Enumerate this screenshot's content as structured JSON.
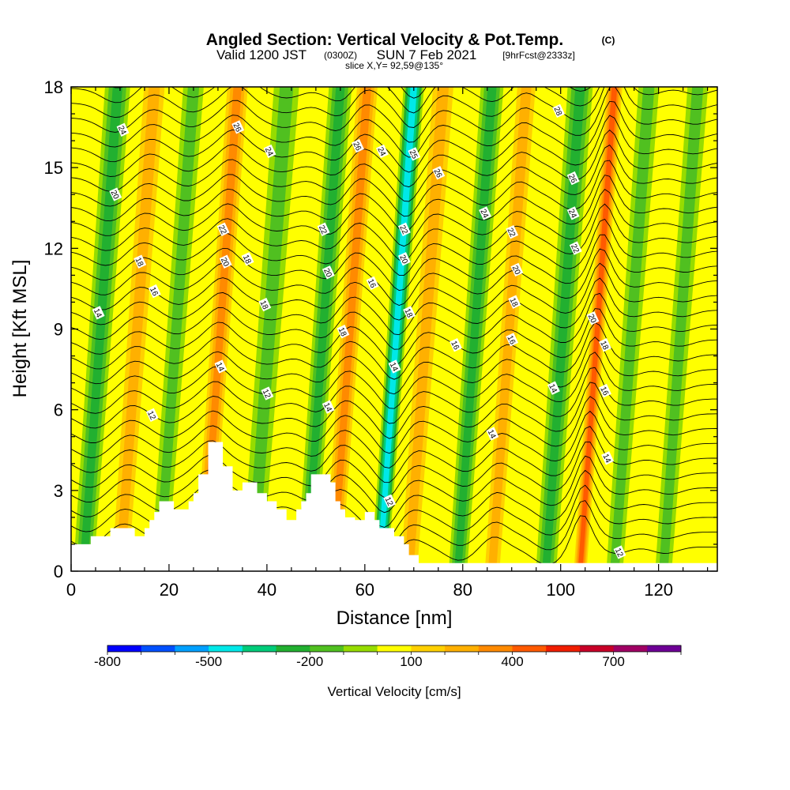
{
  "header": {
    "title": "Angled Section: Vertical Velocity & Pot.Temp.",
    "title_unit": "(C)",
    "valid_prefix": "Valid 1200 JST",
    "valid_utc": "(0300Z)",
    "valid_date": "SUN 7 Feb 2021",
    "forecast": "[9hrFcst@2333z]",
    "slice": "slice X,Y= 92,59@135°"
  },
  "colorbar": {
    "label": "Vertical Velocity [cm/s]",
    "tick_labels": [
      "-800",
      "-500",
      "-200",
      "100",
      "400",
      "700"
    ],
    "colors": [
      "#0000ff",
      "#0050ff",
      "#00a0ff",
      "#00e8e8",
      "#00cc7a",
      "#22b030",
      "#50c020",
      "#96dc00",
      "#ffff00",
      "#ffd000",
      "#ffb000",
      "#ff8a00",
      "#ff5a00",
      "#f01e00",
      "#c80028",
      "#a00064",
      "#6e0096"
    ]
  },
  "chart_data": {
    "type": "heatmap",
    "title": "Angled Section: Vertical Velocity & Pot.Temp.",
    "xlabel": "Distance [nm]",
    "ylabel": "Height [Kft MSL]",
    "xlim": [
      0,
      132
    ],
    "ylim": [
      0,
      18
    ],
    "x_ticks": [
      0,
      20,
      40,
      60,
      80,
      100,
      120
    ],
    "y_ticks": [
      0,
      3,
      6,
      9,
      12,
      15,
      18
    ],
    "colorbar_range": [
      -800,
      900
    ],
    "colorbar_ticks": [
      -800,
      -500,
      -200,
      100,
      400,
      700
    ],
    "shading_variable": "Vertical Velocity [cm/s]",
    "contour_variable": "Potential Temperature (C)",
    "contour_levels": [
      12,
      14,
      16,
      18,
      20,
      22,
      24,
      26,
      28
    ],
    "contour_labels": [
      {
        "value": "24",
        "x": 10.5,
        "y": 16.4
      },
      {
        "value": "20",
        "x": 9,
        "y": 14.0
      },
      {
        "value": "18",
        "x": 14,
        "y": 11.5
      },
      {
        "value": "16",
        "x": 17,
        "y": 10.4
      },
      {
        "value": "14",
        "x": 5.5,
        "y": 9.6
      },
      {
        "value": "12",
        "x": 16.5,
        "y": 5.8
      },
      {
        "value": "26",
        "x": 34,
        "y": 16.5
      },
      {
        "value": "24",
        "x": 40.5,
        "y": 15.6
      },
      {
        "value": "22",
        "x": 31,
        "y": 12.7
      },
      {
        "value": "20",
        "x": 31.5,
        "y": 11.5
      },
      {
        "value": "18",
        "x": 36,
        "y": 11.6
      },
      {
        "value": "18",
        "x": 39.5,
        "y": 9.9
      },
      {
        "value": "14",
        "x": 30.5,
        "y": 7.6
      },
      {
        "value": "12",
        "x": 40,
        "y": 6.6
      },
      {
        "value": "22",
        "x": 51.5,
        "y": 12.7
      },
      {
        "value": "20",
        "x": 52.5,
        "y": 11.1
      },
      {
        "value": "18",
        "x": 55.5,
        "y": 8.9
      },
      {
        "value": "14",
        "x": 52.5,
        "y": 6.1
      },
      {
        "value": "26",
        "x": 58.5,
        "y": 15.8
      },
      {
        "value": "24",
        "x": 63.5,
        "y": 15.6
      },
      {
        "value": "16",
        "x": 61.5,
        "y": 10.7
      },
      {
        "value": "25",
        "x": 70,
        "y": 15.5
      },
      {
        "value": "22",
        "x": 68,
        "y": 12.7
      },
      {
        "value": "20",
        "x": 68,
        "y": 11.6
      },
      {
        "value": "18",
        "x": 69,
        "y": 9.6
      },
      {
        "value": "14",
        "x": 66,
        "y": 7.6
      },
      {
        "value": "12",
        "x": 65,
        "y": 2.6
      },
      {
        "value": "26",
        "x": 75,
        "y": 14.8
      },
      {
        "value": "16",
        "x": 78.5,
        "y": 8.4
      },
      {
        "value": "24",
        "x": 84.5,
        "y": 13.3
      },
      {
        "value": "22",
        "x": 90,
        "y": 12.6
      },
      {
        "value": "20",
        "x": 91,
        "y": 11.2
      },
      {
        "value": "18",
        "x": 90.5,
        "y": 10.0
      },
      {
        "value": "16",
        "x": 90,
        "y": 8.6
      },
      {
        "value": "14",
        "x": 86,
        "y": 5.1
      },
      {
        "value": "28",
        "x": 99.5,
        "y": 17.1
      },
      {
        "value": "26",
        "x": 102.5,
        "y": 14.6
      },
      {
        "value": "24",
        "x": 102.5,
        "y": 13.3
      },
      {
        "value": "22",
        "x": 103,
        "y": 12.0
      },
      {
        "value": "20",
        "x": 106.5,
        "y": 9.4
      },
      {
        "value": "18",
        "x": 109,
        "y": 8.4
      },
      {
        "value": "16",
        "x": 109,
        "y": 6.7
      },
      {
        "value": "14",
        "x": 98.5,
        "y": 6.8
      },
      {
        "value": "14",
        "x": 109.5,
        "y": 4.2
      },
      {
        "value": "12",
        "x": 112,
        "y": 0.7
      }
    ],
    "bands": [
      {
        "center": 9.5,
        "width": 5,
        "type": "down",
        "strength": -270
      },
      {
        "center": 17,
        "width": 4,
        "type": "up",
        "strength": 170
      },
      {
        "center": 25,
        "width": 4,
        "type": "down",
        "strength": -170
      },
      {
        "center": 34,
        "width": 4,
        "type": "up",
        "strength": 330
      },
      {
        "center": 44,
        "width": 5,
        "type": "down",
        "strength": -180
      },
      {
        "center": 55,
        "width": 4.5,
        "type": "down",
        "strength": -260
      },
      {
        "center": 60.5,
        "width": 4,
        "type": "up",
        "strength": 280
      },
      {
        "center": 70,
        "width": 4,
        "type": "down",
        "strength": -470
      },
      {
        "center": 76,
        "width": 4,
        "type": "up",
        "strength": 160
      },
      {
        "center": 86,
        "width": 4.5,
        "type": "down",
        "strength": -250
      },
      {
        "center": 93,
        "width": 3.5,
        "type": "up",
        "strength": 200
      },
      {
        "center": 104,
        "width": 5,
        "type": "down",
        "strength": -330
      },
      {
        "center": 111,
        "width": 3,
        "type": "up",
        "strength": 660
      },
      {
        "center": 118,
        "width": 4,
        "type": "down",
        "strength": -120
      },
      {
        "center": 128,
        "width": 4,
        "type": "down",
        "strength": -120
      }
    ],
    "terrain": [
      [
        0,
        1.0
      ],
      [
        4,
        1.0
      ],
      [
        4,
        1.3
      ],
      [
        8,
        1.3
      ],
      [
        8,
        1.6
      ],
      [
        13,
        1.6
      ],
      [
        13,
        1.3
      ],
      [
        15,
        1.3
      ],
      [
        15,
        1.6
      ],
      [
        16,
        1.6
      ],
      [
        16,
        1.9
      ],
      [
        17,
        1.9
      ],
      [
        17,
        2.2
      ],
      [
        18,
        2.2
      ],
      [
        18,
        2.6
      ],
      [
        21,
        2.6
      ],
      [
        21,
        2.3
      ],
      [
        24,
        2.3
      ],
      [
        24,
        2.6
      ],
      [
        25,
        2.6
      ],
      [
        25,
        2.9
      ],
      [
        26,
        2.9
      ],
      [
        26,
        3.6
      ],
      [
        28,
        3.6
      ],
      [
        28,
        4.8
      ],
      [
        31,
        4.8
      ],
      [
        31,
        3.9
      ],
      [
        33,
        3.9
      ],
      [
        33,
        3.0
      ],
      [
        35,
        3.0
      ],
      [
        35,
        3.3
      ],
      [
        38,
        3.3
      ],
      [
        38,
        2.9
      ],
      [
        40,
        2.9
      ],
      [
        40,
        2.6
      ],
      [
        42,
        2.6
      ],
      [
        42,
        2.3
      ],
      [
        44,
        2.3
      ],
      [
        44,
        1.9
      ],
      [
        46,
        1.9
      ],
      [
        46,
        2.3
      ],
      [
        47,
        2.3
      ],
      [
        47,
        2.6
      ],
      [
        48,
        2.6
      ],
      [
        48,
        2.9
      ],
      [
        49,
        2.9
      ],
      [
        49,
        3.6
      ],
      [
        53,
        3.6
      ],
      [
        53,
        3.3
      ],
      [
        54,
        3.3
      ],
      [
        54,
        2.6
      ],
      [
        55,
        2.6
      ],
      [
        55,
        2.3
      ],
      [
        56,
        2.3
      ],
      [
        56,
        2.0
      ],
      [
        58,
        2.0
      ],
      [
        58,
        1.9
      ],
      [
        60,
        1.9
      ],
      [
        60,
        2.2
      ],
      [
        62,
        2.2
      ],
      [
        62,
        1.9
      ],
      [
        63,
        1.9
      ],
      [
        63,
        1.6
      ],
      [
        66,
        1.6
      ],
      [
        66,
        1.3
      ],
      [
        68,
        1.3
      ],
      [
        68,
        1.0
      ],
      [
        69,
        1.0
      ],
      [
        69,
        0.6
      ],
      [
        71,
        0.6
      ],
      [
        71,
        0.3
      ],
      [
        132,
        0.3
      ]
    ]
  }
}
